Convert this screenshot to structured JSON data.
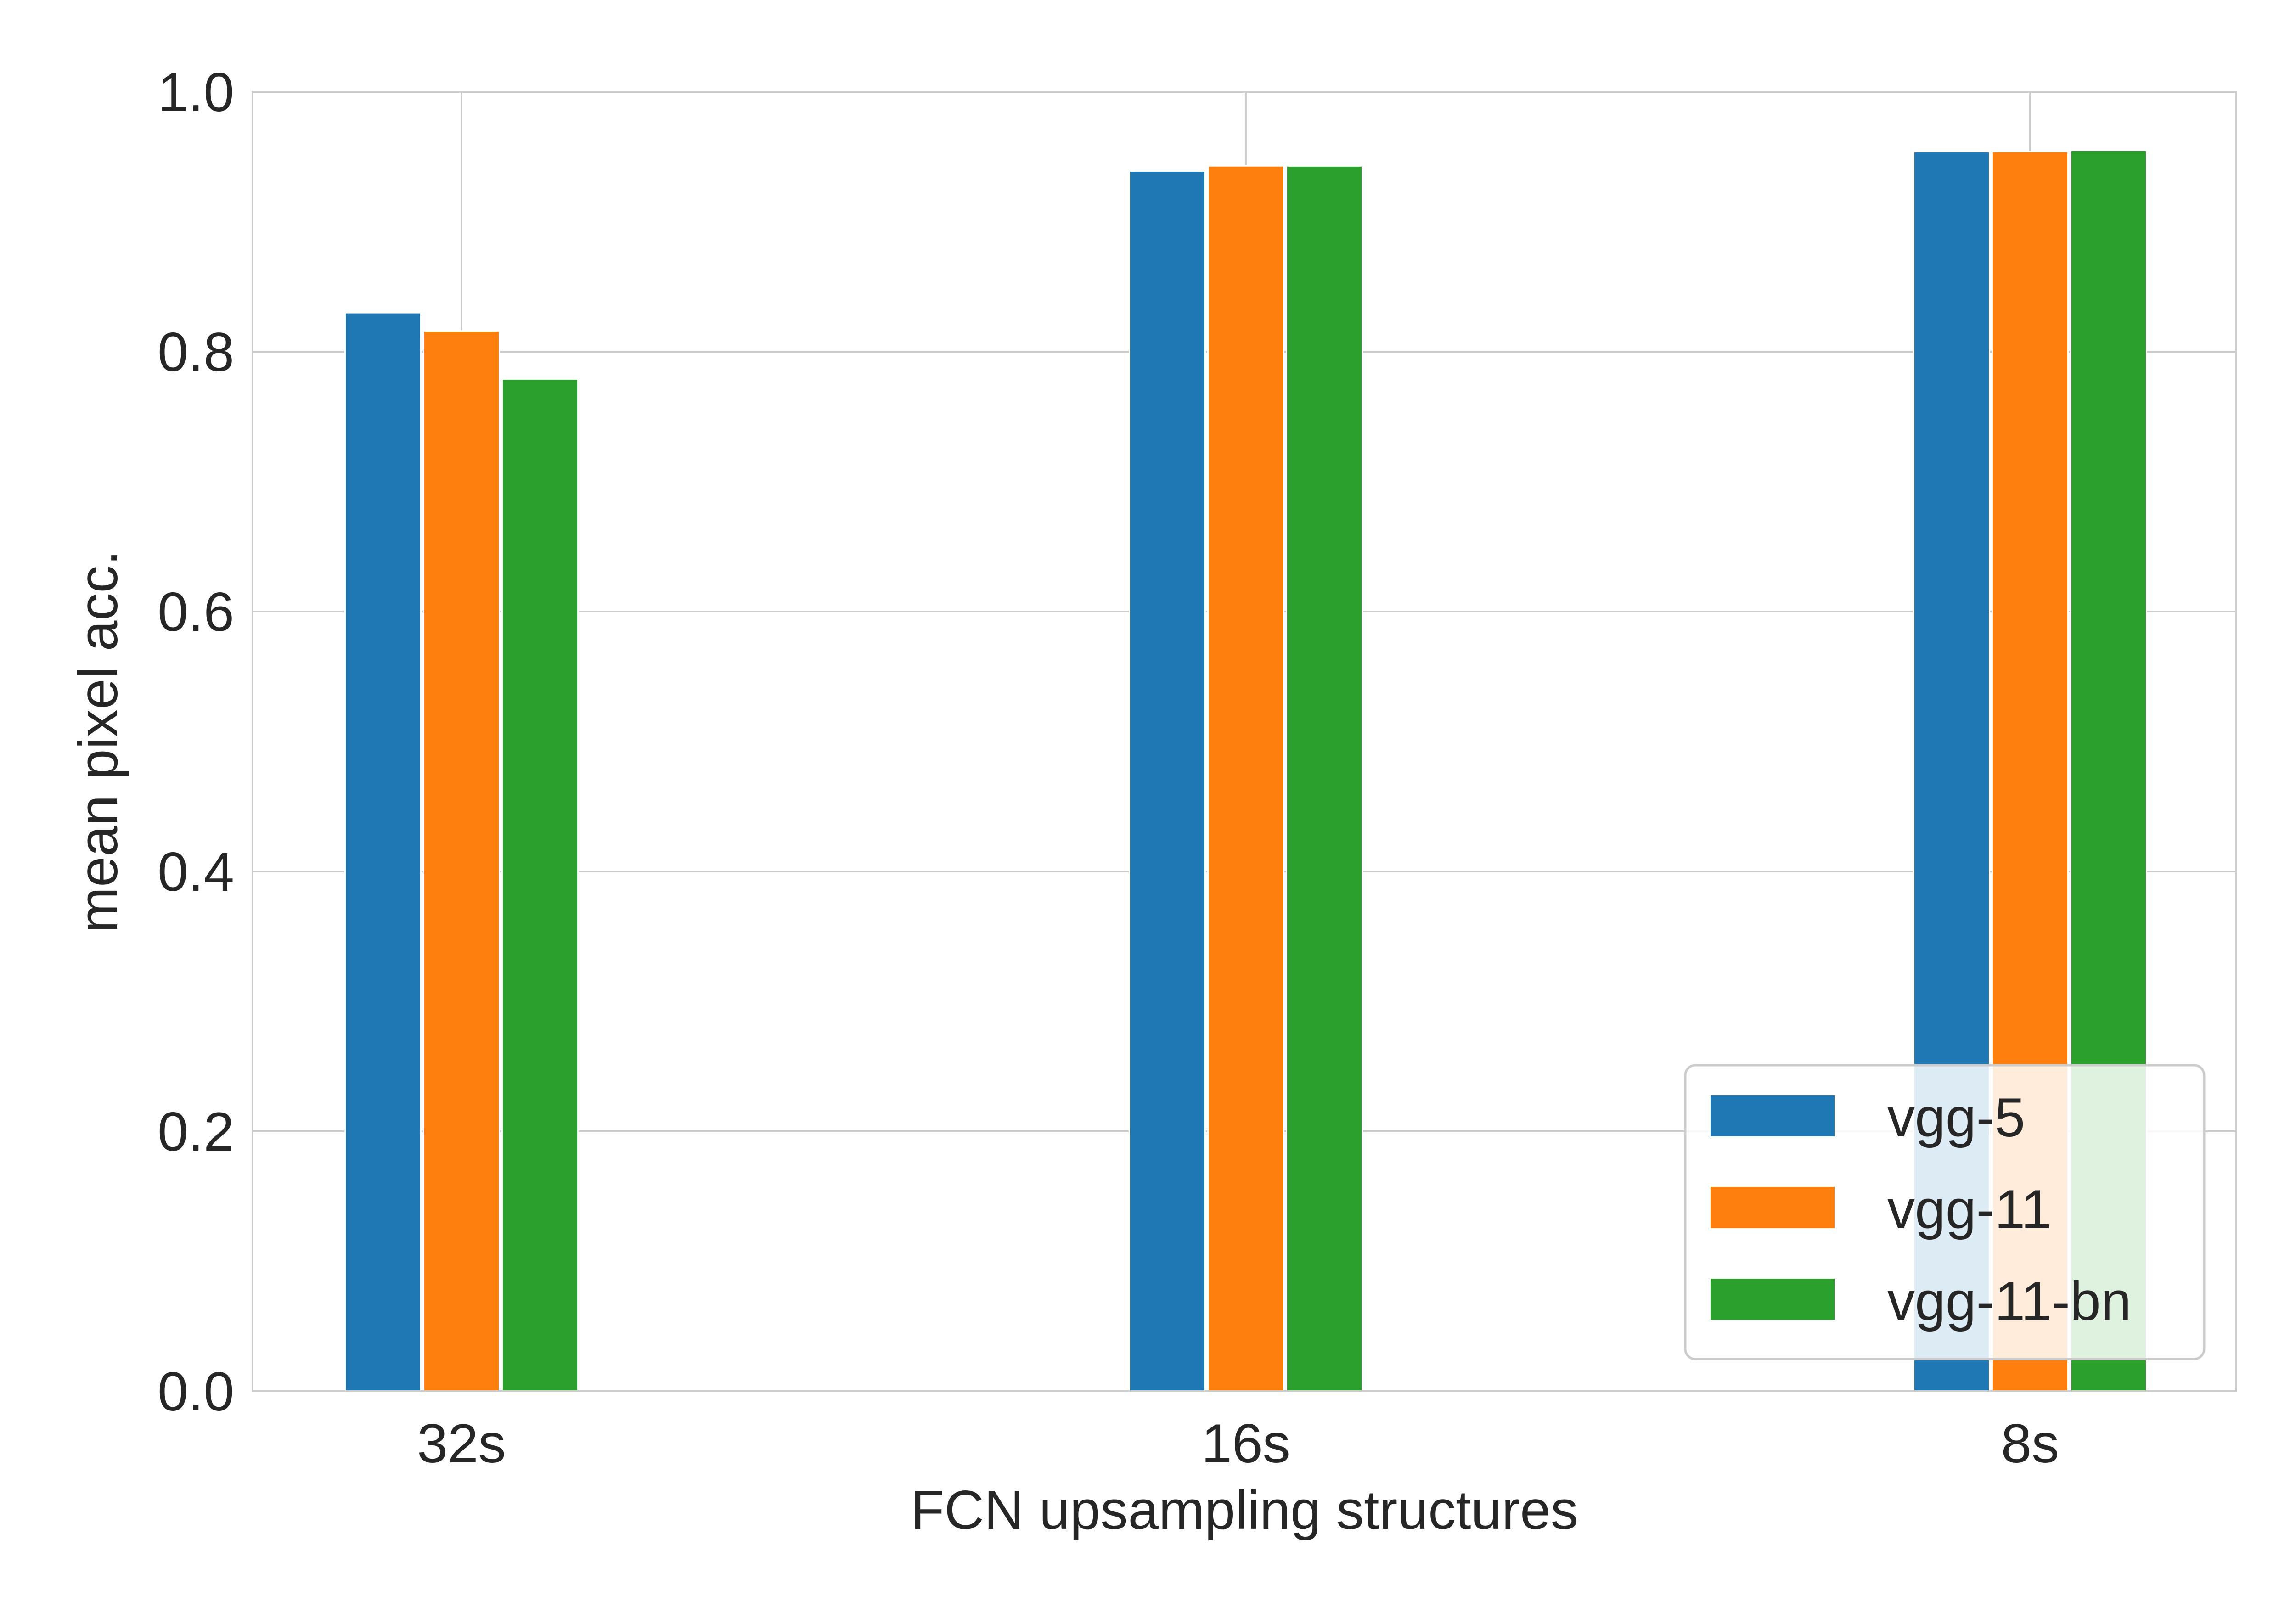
{
  "chart_data": {
    "type": "bar",
    "title": "",
    "xlabel": "FCN upsampling structures",
    "ylabel": "mean pixel acc.",
    "categories": [
      "32s",
      "16s",
      "8s"
    ],
    "series": [
      {
        "name": "vgg-5",
        "color": "#1f77b4",
        "values": [
          0.83,
          0.939,
          0.954
        ]
      },
      {
        "name": "vgg-11",
        "color": "#ff7f0e",
        "values": [
          0.816,
          0.943,
          0.954
        ]
      },
      {
        "name": "vgg-11-bn",
        "color": "#2ca02c",
        "values": [
          0.779,
          0.943,
          0.955
        ]
      }
    ],
    "ylim": [
      0,
      1.0
    ],
    "yticks": [
      "0.0",
      "0.2",
      "0.4",
      "0.6",
      "0.8",
      "1.0"
    ],
    "grid": true,
    "legend_position": "lower-right"
  }
}
